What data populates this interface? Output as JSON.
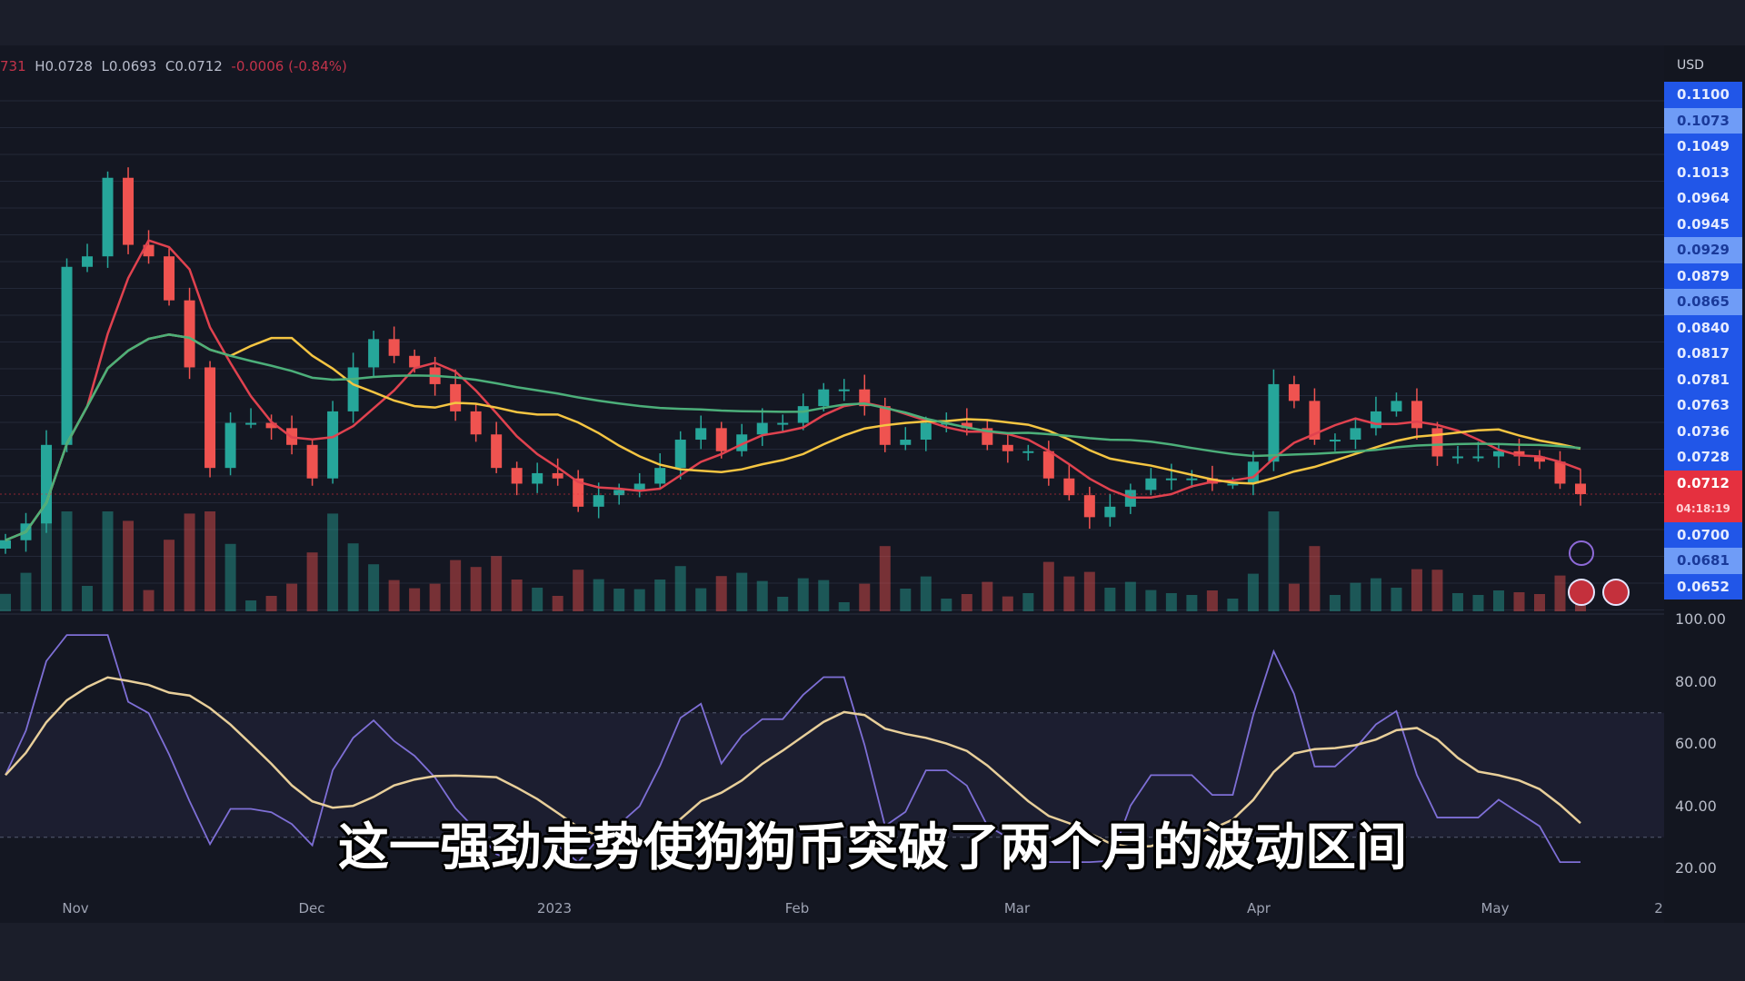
{
  "legend": {
    "open_partial": "731",
    "high": "H0.0728",
    "low": "L0.0693",
    "close": "C0.0712",
    "change": "-0.0006 (-0.84%)"
  },
  "subtitle": "这一强劲走势使狗狗币突破了两个月的波动区间",
  "colors": {
    "up": "#26a69a",
    "down": "#ef5350",
    "ma_short": "#e0424f",
    "ma_mid": "#f5c542",
    "ma_long": "#4caf7a",
    "rsi": "#7e6fd6",
    "rsi_ma": "#e8cf9a",
    "axis_blue": "#2156e8",
    "last_price": "#e5303f"
  },
  "chart_data": {
    "type": "candlestick",
    "currency": "USD",
    "x_range": [
      "2022-10-22",
      "2023-05-12"
    ],
    "closes": [
      0.0668,
      0.0684,
      0.0759,
      0.0929,
      0.0939,
      0.1014,
      0.095,
      0.0939,
      0.0897,
      0.0833,
      0.0737,
      0.078,
      0.078,
      0.0775,
      0.0759,
      0.0727,
      0.0791,
      0.0833,
      0.086,
      0.0844,
      0.0833,
      0.0817,
      0.0791,
      0.0769,
      0.0737,
      0.0722,
      0.0732,
      0.0727,
      0.07,
      0.0711,
      0.0716,
      0.0722,
      0.0737,
      0.0764,
      0.0775,
      0.0753,
      0.0769,
      0.078,
      0.078,
      0.0796,
      0.0812,
      0.0812,
      0.0796,
      0.0759,
      0.0764,
      0.078,
      0.078,
      0.0775,
      0.0759,
      0.0753,
      0.0753,
      0.0727,
      0.0711,
      0.069,
      0.07,
      0.0716,
      0.0727,
      0.0727,
      0.0727,
      0.0722,
      0.0722,
      0.0743,
      0.0817,
      0.0801,
      0.0764,
      0.0764,
      0.0775,
      0.0791,
      0.0801,
      0.0775,
      0.0748,
      0.0748,
      0.0748,
      0.0753,
      0.0748,
      0.0743,
      0.0722,
      0.0712
    ],
    "price_labels": [
      {
        "text": "0.1100",
        "style": "normal"
      },
      {
        "text": "0.1073",
        "style": "hl"
      },
      {
        "text": "0.1049",
        "style": "normal"
      },
      {
        "text": "0.1013",
        "style": "normal"
      },
      {
        "text": "0.0964",
        "style": "normal"
      },
      {
        "text": "0.0945",
        "style": "normal"
      },
      {
        "text": "0.0929",
        "style": "hl"
      },
      {
        "text": "0.0879",
        "style": "normal"
      },
      {
        "text": "0.0865",
        "style": "hl"
      },
      {
        "text": "0.0840",
        "style": "normal"
      },
      {
        "text": "0.0817",
        "style": "normal"
      },
      {
        "text": "0.0781",
        "style": "normal"
      },
      {
        "text": "0.0763",
        "style": "normal"
      },
      {
        "text": "0.0736",
        "style": "normal"
      },
      {
        "text": "0.0728",
        "style": "normal"
      },
      {
        "text": "0.0712",
        "style": "red"
      },
      {
        "text": "04:18:19",
        "style": "red2"
      },
      {
        "text": "0.0700",
        "style": "normal"
      },
      {
        "text": "0.0681",
        "style": "hl"
      },
      {
        "text": "0.0652",
        "style": "normal"
      }
    ],
    "rsi_labels": [
      "100.00",
      "80.00",
      "60.00",
      "40.00",
      "20.00"
    ],
    "rsi_band": [
      30,
      70
    ],
    "x_labels": [
      "Nov",
      "Dec",
      "2023",
      "Feb",
      "Mar",
      "Apr",
      "May",
      "2"
    ],
    "moving_averages": [
      "short",
      "mid",
      "long"
    ]
  }
}
